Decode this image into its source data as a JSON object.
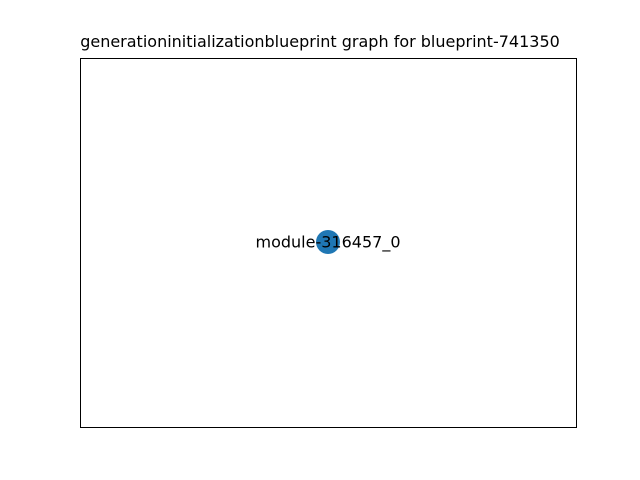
{
  "figure": {
    "title": "generationinitializationblueprint graph for blueprint-741350"
  },
  "graph": {
    "nodes": [
      {
        "id": "module-316457_0",
        "label": "module-316457_0"
      }
    ],
    "edges": [],
    "node_color": "#1f77b4",
    "frame_color": "#000000",
    "background": "#ffffff"
  }
}
